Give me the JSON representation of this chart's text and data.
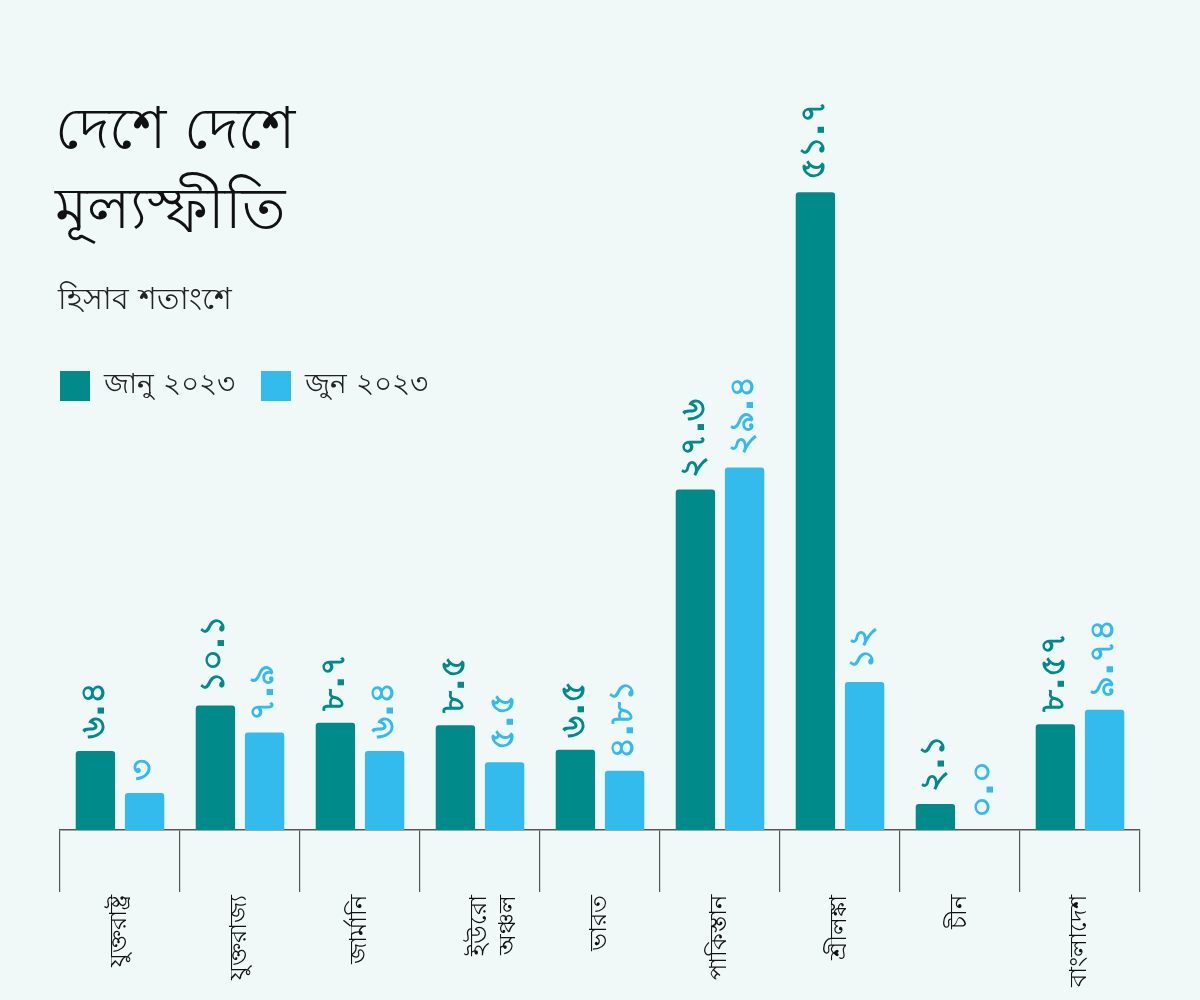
{
  "chart_data": {
    "type": "bar",
    "title": "দেশে দেশে মূল্যস্ফীতি",
    "subtitle": "হিসাব শতাংশে",
    "categories": [
      "যুক্তরাষ্ট্র",
      "যুক্তরাজ্য",
      "জার্মানি",
      "ইউরো অঞ্চল",
      "ভারত",
      "পাকিস্তান",
      "শ্রীলঙ্কা",
      "চীন",
      "বাংলাদেশ"
    ],
    "series": [
      {
        "name": "জানু ২০২৩",
        "color": "#008b8a",
        "values": [
          6.4,
          10.1,
          8.7,
          8.5,
          6.5,
          27.6,
          51.7,
          2.1,
          8.57
        ],
        "value_labels": [
          "৬.৪",
          "১০.১",
          "৮.৭",
          "৮.৫",
          "৬.৫",
          "২৭.৬",
          "৫১.৭",
          "২.১",
          "৮.৫৭"
        ]
      },
      {
        "name": "জুন ২০২৩",
        "color": "#33bbee",
        "values": [
          3,
          7.9,
          6.4,
          5.5,
          4.81,
          29.4,
          12,
          0.0,
          9.74
        ],
        "value_labels": [
          "৩",
          "৭.৯",
          "৬.৪",
          "৫.৫",
          "৪.৮১",
          "২৯.৪",
          "১২",
          "০.০",
          "৯.৭৪"
        ]
      }
    ],
    "legend": "top left"
  }
}
